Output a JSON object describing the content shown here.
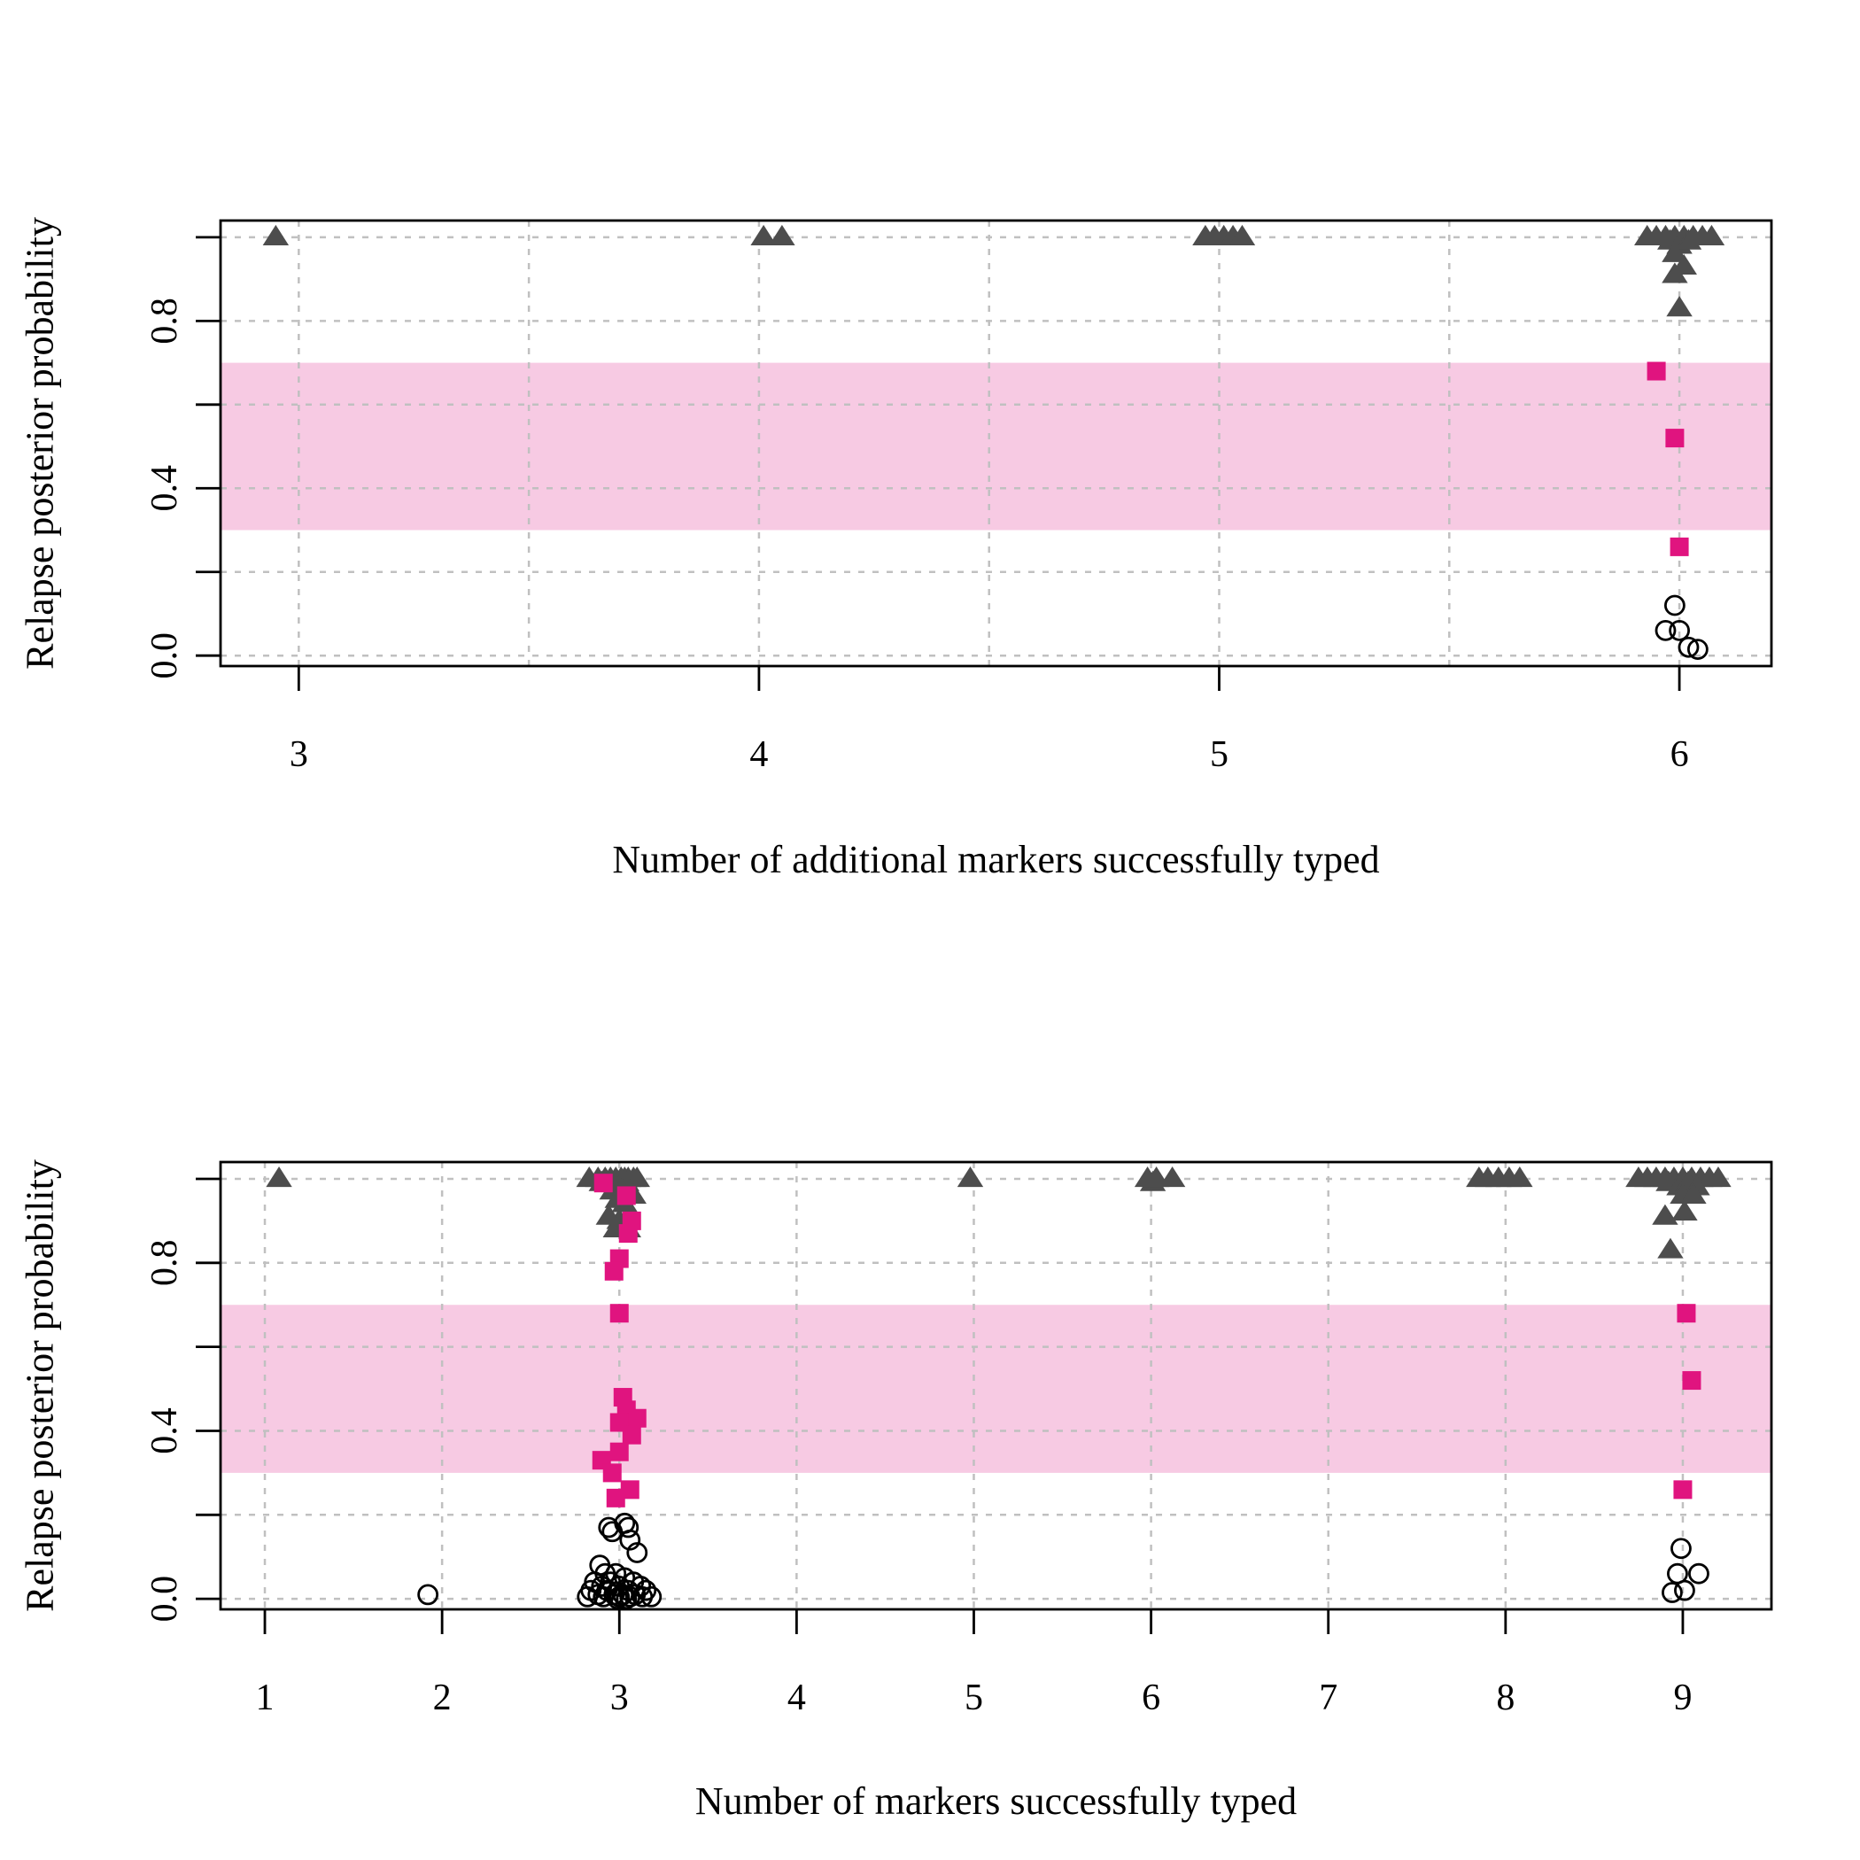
{
  "colors": {
    "band": "#f4b6d8",
    "relapse_triangle": "#4d4d4d",
    "uncertain_square": "#e0147f",
    "reinfection_circle": "#000000",
    "grid": "#c0c0c0"
  },
  "chart_data": [
    {
      "type": "scatter",
      "xlabel": "Number of additional markers successfully typed",
      "ylabel": "Relapse posterior probability",
      "xlim": [
        2.83,
        6.2
      ],
      "ylim": [
        -0.025,
        1.04
      ],
      "xticks": [
        3,
        4,
        5,
        6
      ],
      "xtick_labels": [
        "3",
        "4",
        "5",
        "6"
      ],
      "yticks": [
        0.0,
        0.2,
        0.4,
        0.6,
        0.8,
        1.0
      ],
      "ytick_labels": [
        "0.0",
        "",
        "0.4",
        "",
        "0.8",
        ""
      ],
      "x_grid": [
        3,
        3.5,
        4,
        4.5,
        5,
        5.5,
        6
      ],
      "y_grid": [
        0.0,
        0.2,
        0.4,
        0.6,
        0.8,
        1.0
      ],
      "band": [
        0.3,
        0.7
      ],
      "series": [
        {
          "marker": "triangle",
          "points": [
            [
              2.95,
              1.0
            ],
            [
              4.01,
              1.0
            ],
            [
              4.05,
              1.0
            ],
            [
              4.97,
              1.0
            ],
            [
              4.99,
              1.0
            ],
            [
              5.01,
              1.0
            ],
            [
              5.03,
              1.0
            ],
            [
              5.05,
              1.0
            ],
            [
              5.93,
              1.0
            ],
            [
              5.95,
              1.0
            ],
            [
              5.97,
              1.0
            ],
            [
              5.98,
              0.99
            ],
            [
              5.99,
              1.0
            ],
            [
              6.0,
              0.98
            ],
            [
              6.01,
              1.0
            ],
            [
              6.02,
              0.99
            ],
            [
              6.03,
              1.0
            ],
            [
              6.05,
              1.0
            ],
            [
              6.07,
              1.0
            ],
            [
              5.99,
              0.96
            ],
            [
              6.01,
              0.93
            ],
            [
              5.99,
              0.91
            ],
            [
              6.0,
              0.83
            ]
          ]
        },
        {
          "marker": "square",
          "points": [
            [
              5.95,
              0.68
            ],
            [
              5.99,
              0.52
            ],
            [
              6.0,
              0.26
            ]
          ]
        },
        {
          "marker": "circle",
          "points": [
            [
              5.99,
              0.12
            ],
            [
              5.97,
              0.06
            ],
            [
              6.0,
              0.06
            ],
            [
              6.02,
              0.02
            ],
            [
              6.04,
              0.015
            ]
          ]
        }
      ]
    },
    {
      "type": "scatter",
      "xlabel": "Number of markers successfully typed",
      "ylabel": "Relapse posterior probability",
      "xlim": [
        0.75,
        9.5
      ],
      "ylim": [
        -0.025,
        1.04
      ],
      "xticks": [
        1,
        2,
        3,
        4,
        5,
        6,
        7,
        8,
        9
      ],
      "xtick_labels": [
        "1",
        "2",
        "3",
        "4",
        "5",
        "6",
        "7",
        "8",
        "9"
      ],
      "yticks": [
        0.0,
        0.2,
        0.4,
        0.6,
        0.8,
        1.0
      ],
      "ytick_labels": [
        "0.0",
        "",
        "0.4",
        "",
        "0.8",
        ""
      ],
      "x_grid": [
        1,
        2,
        3,
        4,
        5,
        6,
        7,
        8,
        9
      ],
      "y_grid": [
        0.0,
        0.2,
        0.4,
        0.6,
        0.8,
        1.0
      ],
      "band": [
        0.3,
        0.7
      ],
      "series": [
        {
          "marker": "triangle",
          "points": [
            [
              1.08,
              1.0
            ],
            [
              2.83,
              1.0
            ],
            [
              2.88,
              1.0
            ],
            [
              2.92,
              1.0
            ],
            [
              2.95,
              1.0
            ],
            [
              2.98,
              1.0
            ],
            [
              3.01,
              1.0
            ],
            [
              3.03,
              1.0
            ],
            [
              3.05,
              1.0
            ],
            [
              3.08,
              1.0
            ],
            [
              3.1,
              1.0
            ],
            [
              2.9,
              0.99
            ],
            [
              2.97,
              0.99
            ],
            [
              3.0,
              0.98
            ],
            [
              3.04,
              0.99
            ],
            [
              2.96,
              0.97
            ],
            [
              3.02,
              0.97
            ],
            [
              3.06,
              0.97
            ],
            [
              2.99,
              0.95
            ],
            [
              3.08,
              0.96
            ],
            [
              3.03,
              0.94
            ],
            [
              2.94,
              0.91
            ],
            [
              3.0,
              0.9
            ],
            [
              2.98,
              0.88
            ],
            [
              3.05,
              0.88
            ],
            [
              4.98,
              1.0
            ],
            [
              5.98,
              1.0
            ],
            [
              6.01,
              0.99
            ],
            [
              6.03,
              1.0
            ],
            [
              6.12,
              1.0
            ],
            [
              7.85,
              1.0
            ],
            [
              7.9,
              1.0
            ],
            [
              7.96,
              1.0
            ],
            [
              8.02,
              1.0
            ],
            [
              8.08,
              1.0
            ],
            [
              8.75,
              1.0
            ],
            [
              8.8,
              1.0
            ],
            [
              8.85,
              1.0
            ],
            [
              8.9,
              1.0
            ],
            [
              8.95,
              1.0
            ],
            [
              9.0,
              1.0
            ],
            [
              9.05,
              1.0
            ],
            [
              9.1,
              1.0
            ],
            [
              9.15,
              1.0
            ],
            [
              9.2,
              1.0
            ],
            [
              8.92,
              0.99
            ],
            [
              8.98,
              0.98
            ],
            [
              9.03,
              0.99
            ],
            [
              9.08,
              0.98
            ],
            [
              9.0,
              0.96
            ],
            [
              9.06,
              0.96
            ],
            [
              8.9,
              0.91
            ],
            [
              9.01,
              0.92
            ],
            [
              8.93,
              0.83
            ]
          ]
        },
        {
          "marker": "square",
          "points": [
            [
              2.91,
              0.99
            ],
            [
              3.04,
              0.96
            ],
            [
              3.07,
              0.9
            ],
            [
              3.05,
              0.87
            ],
            [
              3.0,
              0.81
            ],
            [
              2.97,
              0.78
            ],
            [
              3.0,
              0.68
            ],
            [
              3.02,
              0.48
            ],
            [
              3.04,
              0.45
            ],
            [
              3.1,
              0.43
            ],
            [
              3.0,
              0.42
            ],
            [
              3.07,
              0.39
            ],
            [
              2.9,
              0.33
            ],
            [
              3.0,
              0.35
            ],
            [
              2.96,
              0.3
            ],
            [
              3.06,
              0.26
            ],
            [
              2.98,
              0.24
            ],
            [
              9.02,
              0.68
            ],
            [
              9.05,
              0.52
            ],
            [
              9.0,
              0.26
            ]
          ]
        },
        {
          "marker": "circle",
          "points": [
            [
              1.92,
              0.01
            ],
            [
              3.03,
              0.18
            ],
            [
              3.05,
              0.17
            ],
            [
              2.94,
              0.17
            ],
            [
              2.96,
              0.16
            ],
            [
              3.06,
              0.14
            ],
            [
              3.1,
              0.11
            ],
            [
              2.89,
              0.08
            ],
            [
              2.92,
              0.06
            ],
            [
              2.98,
              0.06
            ],
            [
              3.03,
              0.05
            ],
            [
              2.86,
              0.04
            ],
            [
              2.95,
              0.04
            ],
            [
              3.08,
              0.04
            ],
            [
              2.9,
              0.03
            ],
            [
              3.0,
              0.03
            ],
            [
              3.12,
              0.03
            ],
            [
              2.84,
              0.02
            ],
            [
              2.93,
              0.02
            ],
            [
              3.05,
              0.02
            ],
            [
              3.15,
              0.02
            ],
            [
              2.82,
              0.005
            ],
            [
              2.88,
              0.01
            ],
            [
              2.91,
              0.005
            ],
            [
              2.97,
              0.01
            ],
            [
              3.0,
              0.005
            ],
            [
              3.02,
              0.01
            ],
            [
              3.06,
              0.005
            ],
            [
              3.09,
              0.01
            ],
            [
              3.13,
              0.005
            ],
            [
              3.18,
              0.005
            ],
            [
              2.99,
              0.0
            ],
            [
              3.04,
              0.0
            ],
            [
              8.99,
              0.12
            ],
            [
              8.97,
              0.06
            ],
            [
              9.09,
              0.06
            ],
            [
              8.94,
              0.015
            ],
            [
              9.01,
              0.02
            ]
          ]
        }
      ]
    }
  ]
}
